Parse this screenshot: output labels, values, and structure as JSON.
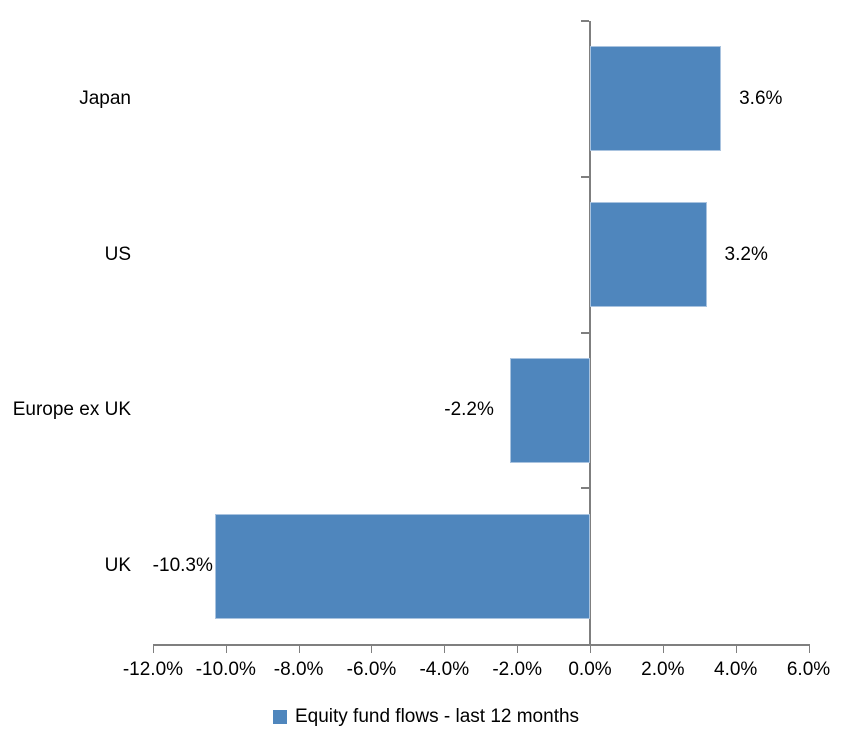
{
  "chart_data": {
    "type": "bar",
    "orientation": "horizontal",
    "title": "",
    "xlabel": "",
    "ylabel": "",
    "categories": [
      "Japan",
      "US",
      "Europe ex UK",
      "UK"
    ],
    "values": [
      3.6,
      3.2,
      -2.2,
      -10.3
    ],
    "data_labels": [
      "3.6%",
      "3.2%",
      "-2.2%",
      "-10.3%"
    ],
    "x_axis": {
      "min": -12,
      "max": 6,
      "step": 2,
      "tick_labels": [
        "-12.0%",
        "-10.0%",
        "-8.0%",
        "-6.0%",
        "-4.0%",
        "-2.0%",
        "0.0%",
        "2.0%",
        "4.0%",
        "6.0%"
      ]
    },
    "grid": false,
    "legend_position": "bottom",
    "legend": [
      {
        "label": "Equity fund flows - last 12 months",
        "color": "#4f86bd"
      }
    ],
    "colors": {
      "bar_fill": "#4f86bd",
      "bar_border": "#a9c3df",
      "axis": "#7f7f7f",
      "text": "#000000"
    }
  }
}
